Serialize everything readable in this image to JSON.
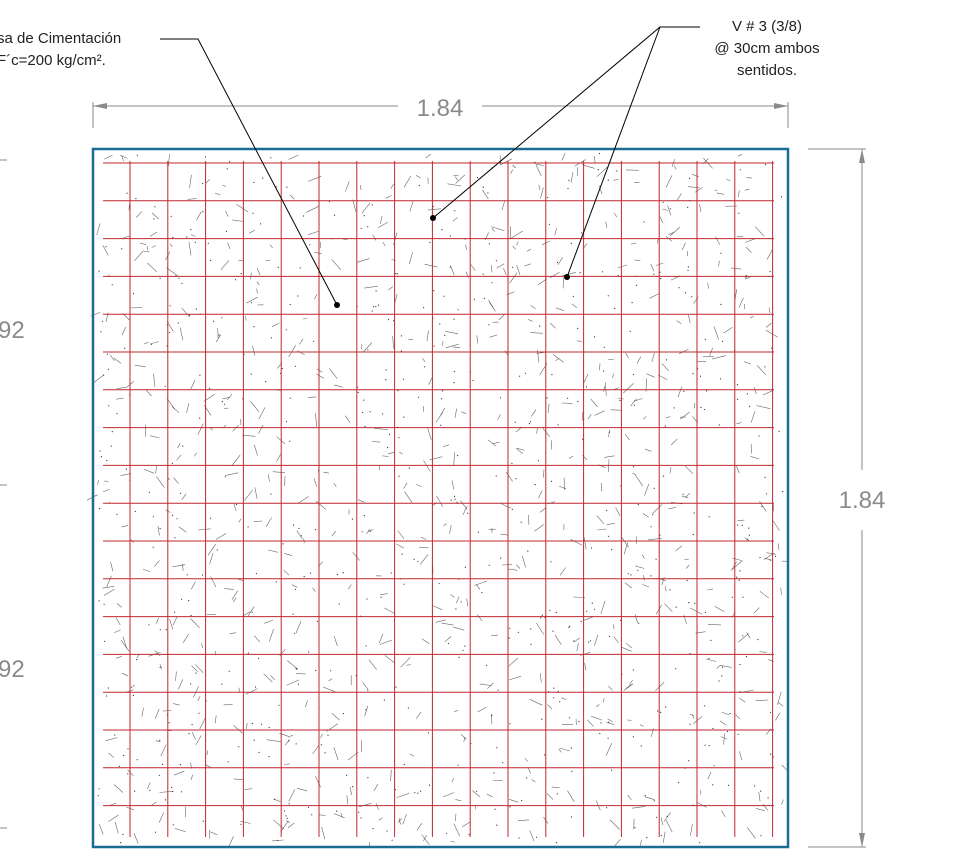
{
  "labels": {
    "losa_line1": "sa de Cimentación",
    "losa_line2": "F´c=200 kg/cm².",
    "bar_line1": "V # 3 (3/8)",
    "bar_line2": "@ 30cm ambos",
    "bar_line3": "sentidos."
  },
  "dimensions": {
    "top": "1.84",
    "right": "1.84",
    "left_upper": "92",
    "left_lower": "92"
  },
  "colors": {
    "slab_border": "#1a6e94",
    "rebar": "#c0272d",
    "leader": "#000000",
    "dimension": "#8a8a8a",
    "concrete_texture": "#333333"
  }
}
